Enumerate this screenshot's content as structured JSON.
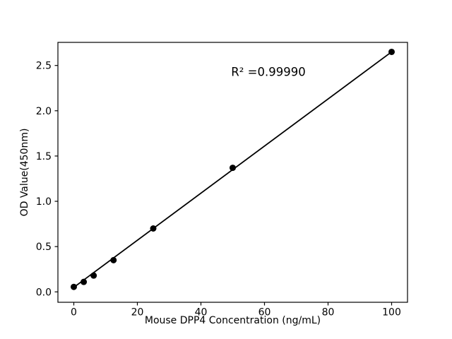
{
  "figure": {
    "background": "#ffffff"
  },
  "chart_data": {
    "type": "scatter",
    "title": "",
    "xlabel": "Mouse DPP4 Concentration (ng/mL)",
    "ylabel": "OD Value(450nm)",
    "annotation": "R² =0.99990",
    "x": [
      0,
      3.125,
      6.25,
      12.5,
      25,
      50,
      100
    ],
    "y": [
      0.055,
      0.11,
      0.18,
      0.35,
      0.7,
      1.37,
      2.65
    ],
    "fit_line": {
      "x1": 0,
      "y1": 0.05,
      "x2": 100,
      "y2": 2.65
    },
    "xticks": [
      {
        "value": 0,
        "label": "0"
      },
      {
        "value": 20,
        "label": "20"
      },
      {
        "value": 40,
        "label": "40"
      },
      {
        "value": 60,
        "label": "60"
      },
      {
        "value": 80,
        "label": "80"
      },
      {
        "value": 100,
        "label": "100"
      }
    ],
    "yticks": [
      {
        "value": 0.0,
        "label": "0.0"
      },
      {
        "value": 0.5,
        "label": "0.5"
      },
      {
        "value": 1.0,
        "label": "1.0"
      },
      {
        "value": 1.5,
        "label": "1.5"
      },
      {
        "value": 2.0,
        "label": "2.0"
      },
      {
        "value": 2.5,
        "label": "2.5"
      }
    ],
    "xlim": [
      -5,
      105
    ],
    "ylim": [
      -0.115,
      2.755
    ],
    "grid": false,
    "legend": null,
    "marker_color": "#000000",
    "line_color": "#000000",
    "axis_color": "#000000",
    "text_color": "#000000"
  }
}
